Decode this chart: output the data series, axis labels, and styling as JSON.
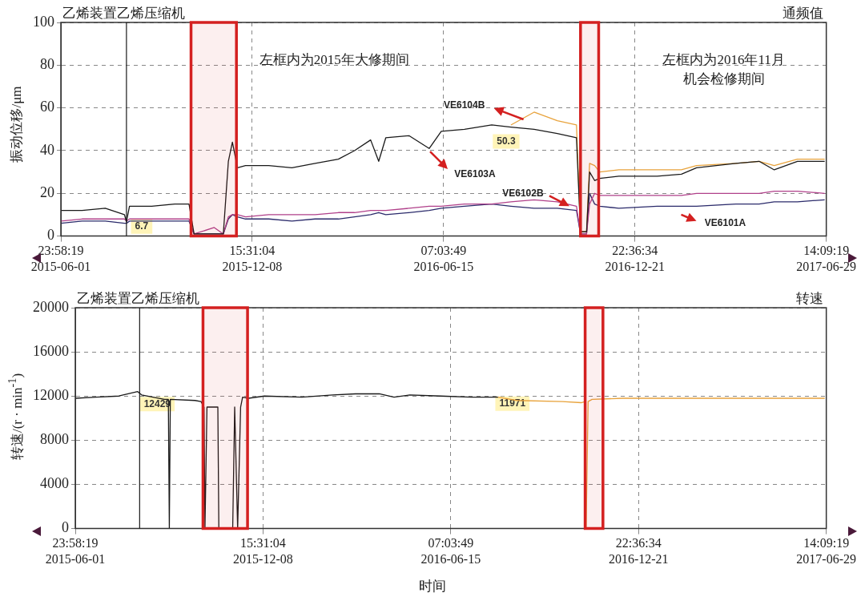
{
  "chart_data": [
    {
      "type": "line",
      "title": "乙烯装置乙烯压缩机",
      "subtitle": "通频值",
      "ylabel": "振动位移/μm",
      "x": [
        "2015-06-02",
        "2015-06-23",
        "2015-07-16",
        "2015-08-04",
        "2015-08-06",
        "2015-08-09",
        "2015-08-31",
        "2015-09-23",
        "2015-10-07",
        "2015-10-12",
        "2015-11-01",
        "2015-11-10",
        "2015-11-15",
        "2015-11-19",
        "2015-11-24",
        "2015-12-02",
        "2015-12-25",
        "2016-01-17",
        "2016-02-09",
        "2016-03-03",
        "2016-03-19",
        "2016-04-04",
        "2016-04-12",
        "2016-04-19",
        "2016-05-12",
        "2016-06-01",
        "2016-06-13",
        "2016-07-06",
        "2016-08-02",
        "2016-08-21",
        "2016-09-13",
        "2016-10-06",
        "2016-10-25",
        "2016-10-29",
        "2016-11-04",
        "2016-11-07",
        "2016-11-12",
        "2016-11-17",
        "2016-12-06",
        "2017-01-13",
        "2017-02-06",
        "2017-02-21",
        "2017-04-01",
        "2017-04-24",
        "2017-05-09",
        "2017-06-01",
        "2017-06-28"
      ],
      "series": [
        {
          "color": "#1a1a1a",
          "values": [
            12,
            12,
            13,
            10,
            6.7,
            14,
            14,
            15,
            15,
            1,
            1,
            1,
            35,
            44,
            32,
            33,
            33,
            32,
            34,
            36,
            40,
            45,
            35,
            46,
            47,
            41,
            49,
            50,
            52,
            51,
            50,
            48,
            46,
            2,
            2,
            30,
            26,
            27,
            28,
            28,
            29,
            32,
            34,
            35,
            31,
            35,
            35
          ]
        },
        {
          "color": "#b0408a",
          "values": [
            7,
            8,
            8,
            8,
            7,
            8,
            8,
            8,
            8,
            1,
            4,
            1,
            9,
            10,
            10,
            9,
            10,
            10,
            10,
            11,
            11,
            12,
            12,
            12,
            13,
            14,
            14,
            15,
            15,
            16,
            17,
            16,
            14,
            1,
            1,
            15,
            20,
            19,
            19,
            19,
            19,
            20,
            20,
            20,
            21,
            21,
            20
          ]
        },
        {
          "color": "#2b2b6b",
          "values": [
            6,
            7,
            7,
            6,
            6,
            7,
            7,
            7,
            7,
            1,
            1,
            1,
            8,
            10,
            9,
            8,
            8,
            7,
            8,
            8,
            9,
            10,
            11,
            10,
            11,
            12,
            13,
            14,
            15,
            14,
            13,
            13,
            12,
            1,
            1,
            20,
            15,
            14,
            13,
            14,
            14,
            14,
            15,
            15,
            16,
            16,
            17
          ]
        },
        {
          "color": "#e8a33c",
          "values": [
            null,
            null,
            null,
            null,
            null,
            null,
            null,
            null,
            null,
            null,
            null,
            null,
            null,
            null,
            null,
            null,
            null,
            null,
            null,
            null,
            null,
            null,
            null,
            null,
            null,
            null,
            null,
            null,
            null,
            52,
            58,
            54,
            52,
            2,
            2,
            34,
            33,
            30,
            31,
            31,
            31,
            33,
            34,
            35,
            33,
            36,
            36
          ]
        }
      ],
      "xlim": [
        "2015-06-01T23:58:19",
        "2017-06-29T14:09:19"
      ],
      "xticks": [
        {
          "value": "2015-06-01T23:58:19",
          "label": "23:58:19\n2015-06-01"
        },
        {
          "value": "2015-12-08T15:31:04",
          "label": "15:31:04\n2015-12-08"
        },
        {
          "value": "2016-06-15T07:03:49",
          "label": "07:03:49\n2016-06-15"
        },
        {
          "value": "2016-12-21T22:36:34",
          "label": "22:36:34\n2016-12-21"
        },
        {
          "value": "2017-06-29T14:09:19",
          "label": "14:09:19\n2017-06-29"
        }
      ],
      "ylim": [
        0,
        100
      ],
      "yticks": [
        0,
        20,
        40,
        60,
        80,
        100
      ],
      "grid": true,
      "legend": false,
      "ref_lines": [
        {
          "axis": "x",
          "value": "2015-08-06",
          "color": "#1a1a1a"
        }
      ],
      "bands": [
        {
          "axis": "x",
          "from": "2015-10-09",
          "to": "2015-11-23",
          "color": "#d42020"
        },
        {
          "axis": "x",
          "from": "2016-10-29",
          "to": "2016-11-16",
          "color": "#d42020"
        }
      ],
      "annotations": [
        "左框内为2015年大修期间",
        "左框内为2016年11月机会检修期间",
        {
          "text": "6.7",
          "x": "2015-08-06",
          "y": 6.7
        },
        {
          "text": "50.3",
          "x": "2016-08-02",
          "y": 50.3
        },
        "VE6104B",
        "VE6103A",
        {
          "text": "VE6102B",
          "x": "2016-10-18",
          "y": 14
        },
        "VE6101A"
      ]
    },
    {
      "type": "line",
      "title": "乙烯装置乙烯压缩机",
      "subtitle": "转速",
      "ylabel": "转速/(r · min$^{-1}$)",
      "xlabel": "时间",
      "series": [
        {
          "color": "#1a1a1a",
          "x": [
            "2015-06-02",
            "2015-06-23",
            "2015-07-16",
            "2015-08-04",
            "2015-08-08",
            "2015-08-31",
            "2015-09-04",
            "2015-09-05",
            "2015-09-06",
            "2015-10-01",
            "2015-10-07",
            "2015-10-10",
            "2015-10-11",
            "2015-10-13",
            "2015-10-24",
            "2015-10-25",
            "2015-11-08",
            "2015-11-10",
            "2015-11-13",
            "2015-11-16",
            "2015-11-18",
            "2015-11-24",
            "2015-12-10",
            "2016-01-17",
            "2016-02-17",
            "2016-03-11",
            "2016-04-04",
            "2016-04-19",
            "2016-05-05",
            "2016-06-05",
            "2016-07-06",
            "2016-08-02"
          ],
          "values": [
            11800,
            11900,
            12000,
            12400,
            12100,
            11700,
            11700,
            0,
            11700,
            11600,
            11500,
            11000,
            0,
            11000,
            11000,
            0,
            0,
            11000,
            0,
            11000,
            11900,
            11800,
            12000,
            11900,
            12100,
            12200,
            12200,
            11900,
            12100,
            12000,
            11900,
            11900
          ]
        },
        {
          "color": "#e8a33c",
          "x": [
            "2016-08-02",
            "2016-08-21",
            "2016-10-06",
            "2016-10-25",
            "2016-10-29",
            "2016-10-30",
            "2016-11-01",
            "2016-11-05",
            "2016-12-06",
            "2017-02-21",
            "2017-05-09",
            "2017-06-28"
          ],
          "values": [
            11900,
            11600,
            11500,
            11400,
            11500,
            0,
            11500,
            11700,
            11800,
            11800,
            11800,
            11800
          ]
        }
      ],
      "xlim": [
        "2015-06-01T23:58:19",
        "2017-06-29T14:09:19"
      ],
      "xticks": [
        {
          "value": "2015-06-01T23:58:19",
          "label": "23:58:19\n2015-06-01"
        },
        {
          "value": "2015-12-08T15:31:04",
          "label": "15:31:04\n2015-12-08"
        },
        {
          "value": "2016-06-15T07:03:49",
          "label": "07:03:49\n2016-06-15"
        },
        {
          "value": "2016-12-21T22:36:34",
          "label": "22:36:34\n2016-12-21"
        },
        {
          "value": "2017-06-29T14:09:19",
          "label": "14:09:19\n2017-06-29"
        }
      ],
      "ylim": [
        0,
        20000
      ],
      "yticks": [
        0,
        4000,
        8000,
        12000,
        16000,
        20000
      ],
      "grid": true,
      "legend": false,
      "ref_lines": [
        {
          "axis": "x",
          "value": "2015-08-06",
          "color": "#1a1a1a"
        }
      ],
      "bands": [
        {
          "axis": "x",
          "from": "2015-10-09",
          "to": "2015-11-23",
          "color": "#d42020"
        },
        {
          "axis": "x",
          "from": "2016-10-29",
          "to": "2016-11-16",
          "color": "#d42020"
        }
      ],
      "annotations": [
        {
          "text": "12429",
          "x": "2015-08-06",
          "y": 12429
        },
        {
          "text": "11971",
          "x": "2016-08-02",
          "y": 11971
        }
      ]
    }
  ]
}
